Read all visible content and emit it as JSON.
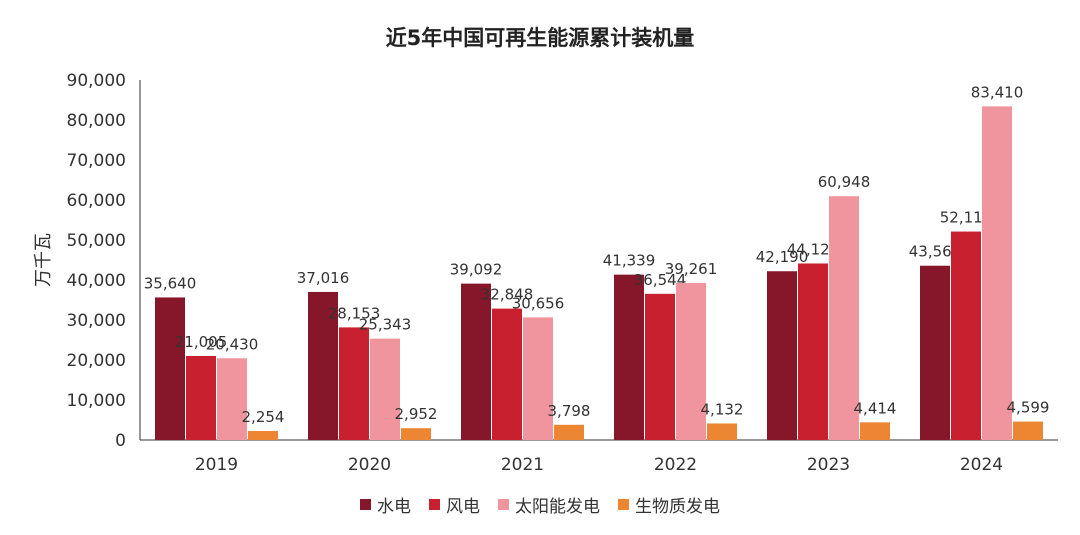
{
  "chart_data": {
    "type": "bar",
    "title": "近5年中国可再生能源累计装机量",
    "ylabel": "万千瓦",
    "xlabel": "",
    "ylim": [
      0,
      90000
    ],
    "yticks": [
      "0",
      "10,000",
      "20,000",
      "30,000",
      "40,000",
      "50,000",
      "60,000",
      "70,000",
      "80,000",
      "90,000"
    ],
    "categories": [
      "2019",
      "2020",
      "2021",
      "2022",
      "2023",
      "2024"
    ],
    "series": [
      {
        "name": "水电",
        "color": "#86172A",
        "values": [
          35640,
          37016,
          39092,
          41339,
          42190,
          43568
        ],
        "labels": [
          "35,640",
          "37,016",
          "39,092",
          "41,339",
          "42,190",
          "43,568"
        ]
      },
      {
        "name": "风电",
        "color": "#C8202F",
        "values": [
          21005,
          28153,
          32848,
          36544,
          44128,
          52110
        ],
        "labels": [
          "21,005",
          "28,153",
          "32,848",
          "36,544",
          "44,128",
          "52,110"
        ]
      },
      {
        "name": "太阳能发电",
        "color": "#F0959D",
        "values": [
          20430,
          25343,
          30656,
          39261,
          60948,
          83410
        ],
        "labels": [
          "20,430",
          "25,343",
          "30,656",
          "39,261",
          "60,948",
          "83,410"
        ]
      },
      {
        "name": "生物质发电",
        "color": "#EC8632",
        "values": [
          2254,
          2952,
          3798,
          4132,
          4414,
          4599
        ],
        "labels": [
          "2,254",
          "2,952",
          "3,798",
          "4,132",
          "4,414",
          "4,599"
        ]
      }
    ],
    "grid": false,
    "legend_position": "bottom"
  }
}
